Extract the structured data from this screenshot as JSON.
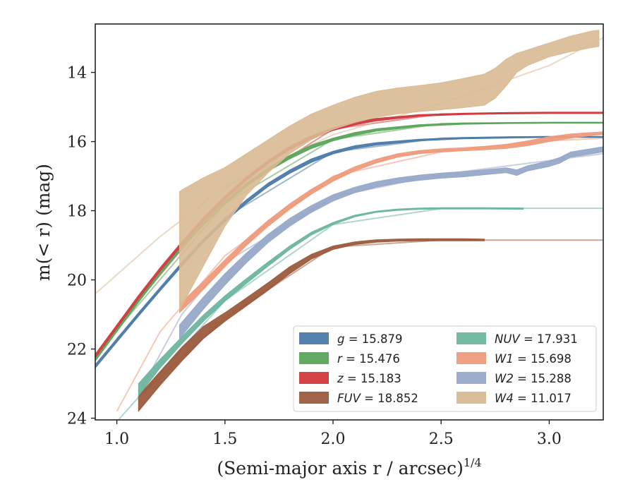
{
  "chart_data": {
    "type": "line",
    "title": "",
    "xlabel": "(Semi-major axis r / arcsec)",
    "xlabel_exponent": "1/4",
    "ylabel": "m(< r) (mag)",
    "xlim": [
      0.9,
      3.25
    ],
    "ylim": [
      24.05,
      12.6
    ],
    "y_inverted": true,
    "grid": false,
    "legend_position": "lower-right",
    "xticks": [
      "1.0",
      "1.5",
      "2.0",
      "2.5",
      "3.0"
    ],
    "yticks": [
      "14",
      "16",
      "18",
      "20",
      "22",
      "24"
    ],
    "series": [
      {
        "name": "g = 15.879",
        "band": "g",
        "value": "15.879",
        "color": "#4C7BA8",
        "band_x": [
          0.9,
          1.0,
          1.1,
          1.2,
          1.3,
          1.4,
          1.5,
          1.6,
          1.7,
          1.8,
          1.9,
          2.0,
          2.1,
          2.2,
          2.4,
          2.6,
          2.8,
          3.0,
          3.25
        ],
        "band_lo": [
          22.55,
          21.8,
          21.05,
          20.32,
          19.6,
          18.92,
          18.32,
          17.78,
          17.3,
          16.92,
          16.6,
          16.36,
          16.2,
          16.1,
          15.98,
          15.92,
          15.9,
          15.88,
          15.88
        ],
        "band_hi": [
          22.45,
          21.7,
          20.95,
          20.22,
          19.5,
          18.82,
          18.22,
          17.68,
          17.2,
          16.82,
          16.5,
          16.28,
          16.12,
          16.03,
          15.93,
          15.88,
          15.86,
          15.85,
          15.85
        ],
        "fit_x": [
          1.0,
          1.5,
          2.0,
          2.5,
          3.0
        ],
        "fit_y": [
          21.7,
          18.2,
          16.3,
          15.9,
          15.86
        ]
      },
      {
        "name": "r = 15.476",
        "band": "r",
        "value": "15.476",
        "color": "#5AA558",
        "band_x": [
          0.9,
          1.0,
          1.1,
          1.2,
          1.3,
          1.4,
          1.5,
          1.6,
          1.7,
          1.8,
          1.9,
          2.0,
          2.1,
          2.2,
          2.4,
          2.6,
          2.8,
          3.0,
          3.25
        ],
        "band_lo": [
          22.35,
          21.5,
          20.65,
          19.85,
          19.1,
          18.42,
          17.82,
          17.3,
          16.86,
          16.5,
          16.2,
          15.98,
          15.82,
          15.7,
          15.56,
          15.5,
          15.48,
          15.47,
          15.47
        ],
        "band_hi": [
          22.25,
          21.4,
          20.55,
          19.75,
          19.0,
          18.32,
          17.72,
          17.2,
          16.76,
          16.4,
          16.1,
          15.9,
          15.74,
          15.63,
          15.51,
          15.46,
          15.45,
          15.44,
          15.44
        ],
        "fit_x": [
          1.0,
          1.5,
          2.0,
          2.5,
          3.0
        ],
        "fit_y": [
          21.45,
          17.8,
          15.94,
          15.48,
          15.46
        ]
      },
      {
        "name": "z = 15.183",
        "band": "z",
        "value": "15.183",
        "color": "#D0393E",
        "band_x": [
          0.9,
          1.0,
          1.1,
          1.2,
          1.3,
          1.4,
          1.5,
          1.6,
          1.7,
          1.8,
          1.9,
          2.0,
          2.1,
          2.2,
          2.4,
          2.6,
          2.8,
          3.0,
          3.25
        ],
        "band_lo": [
          22.25,
          21.4,
          20.55,
          19.75,
          19.0,
          18.3,
          17.68,
          17.12,
          16.64,
          16.24,
          15.92,
          15.68,
          15.52,
          15.4,
          15.27,
          15.22,
          15.2,
          15.19,
          15.19
        ],
        "band_hi": [
          22.15,
          21.3,
          20.45,
          19.65,
          18.9,
          18.2,
          17.58,
          17.02,
          16.54,
          16.14,
          15.83,
          15.6,
          15.44,
          15.33,
          15.22,
          15.18,
          15.16,
          15.15,
          15.15
        ],
        "fit_x": [
          1.0,
          1.5,
          2.0,
          2.5,
          3.0
        ],
        "fit_y": [
          21.35,
          17.63,
          15.64,
          15.2,
          15.18
        ]
      },
      {
        "name": "FUV = 18.852",
        "band": "FUV",
        "value": "18.852",
        "color": "#9B5B3E",
        "band_x": [
          1.1,
          1.2,
          1.3,
          1.4,
          1.5,
          1.6,
          1.7,
          1.8,
          1.9,
          2.0,
          2.1,
          2.2,
          2.3,
          2.4,
          2.5,
          2.6,
          2.7
        ],
        "band_lo": [
          23.8,
          23.05,
          22.35,
          21.7,
          21.2,
          20.75,
          20.3,
          19.82,
          19.4,
          19.12,
          18.98,
          18.91,
          18.88,
          18.87,
          18.87,
          18.87,
          18.87
        ],
        "band_hi": [
          23.35,
          22.65,
          21.95,
          21.35,
          20.95,
          20.52,
          20.08,
          19.62,
          19.26,
          19.02,
          18.9,
          18.84,
          18.82,
          18.81,
          18.81,
          18.81,
          18.82
        ],
        "fit_x": [
          1.1,
          1.5,
          2.0,
          2.5,
          3.0,
          3.25
        ],
        "fit_y": [
          23.4,
          21.1,
          19.05,
          18.85,
          18.85,
          18.85
        ]
      },
      {
        "name": "NUV = 17.931",
        "band": "NUV",
        "value": "17.931",
        "color": "#6DB59E",
        "band_x": [
          1.1,
          1.2,
          1.3,
          1.4,
          1.5,
          1.6,
          1.7,
          1.8,
          1.9,
          2.0,
          2.1,
          2.2,
          2.3,
          2.4,
          2.5,
          2.6,
          2.7,
          2.88
        ],
        "band_lo": [
          23.35,
          22.55,
          21.85,
          21.2,
          20.62,
          20.1,
          19.6,
          19.12,
          18.7,
          18.4,
          18.18,
          18.05,
          17.99,
          17.96,
          17.95,
          17.95,
          17.95,
          17.96
        ],
        "band_hi": [
          23.0,
          22.3,
          21.65,
          21.02,
          20.46,
          19.96,
          19.48,
          19.02,
          18.62,
          18.34,
          18.13,
          18.01,
          17.95,
          17.92,
          17.91,
          17.91,
          17.91,
          17.92
        ],
        "fit_x": [
          1.0,
          1.5,
          2.0,
          2.5,
          3.0,
          3.25
        ],
        "fit_y": [
          24.1,
          20.6,
          18.4,
          17.94,
          17.93,
          17.93
        ]
      },
      {
        "name": "W1 = 15.698",
        "band": "W1",
        "value": "15.698",
        "color": "#EE9B7B",
        "band_x": [
          1.29,
          1.4,
          1.5,
          1.6,
          1.7,
          1.8,
          1.9,
          2.0,
          2.1,
          2.2,
          2.3,
          2.4,
          2.5,
          2.6,
          2.7,
          2.8,
          2.9,
          3.0,
          3.1,
          3.2,
          3.25
        ],
        "band_lo": [
          20.95,
          20.28,
          19.62,
          19.0,
          18.45,
          17.96,
          17.52,
          17.15,
          16.85,
          16.62,
          16.45,
          16.35,
          16.3,
          16.27,
          16.24,
          16.2,
          16.12,
          16.0,
          15.9,
          15.82,
          15.8
        ],
        "band_hi": [
          20.7,
          20.05,
          19.42,
          18.82,
          18.28,
          17.8,
          17.38,
          17.02,
          16.73,
          16.51,
          16.35,
          16.26,
          16.21,
          16.18,
          16.14,
          16.08,
          15.98,
          15.86,
          15.78,
          15.74,
          15.72
        ],
        "fit_x": [
          1.0,
          1.2,
          1.5,
          2.0,
          2.5,
          3.0,
          3.25
        ],
        "fit_y": [
          23.8,
          21.5,
          19.3,
          17.0,
          16.3,
          15.98,
          15.9
        ]
      },
      {
        "name": "W2 = 15.288",
        "band": "W2",
        "value": "15.288",
        "color": "#97A8C8",
        "band_x": [
          1.29,
          1.4,
          1.5,
          1.6,
          1.7,
          1.8,
          1.9,
          2.0,
          2.1,
          2.2,
          2.3,
          2.4,
          2.5,
          2.6,
          2.7,
          2.8,
          2.85,
          2.9,
          3.0,
          3.05,
          3.1,
          3.2,
          3.25
        ],
        "band_lo": [
          21.7,
          20.85,
          20.15,
          19.5,
          18.92,
          18.45,
          18.05,
          17.72,
          17.48,
          17.32,
          17.2,
          17.12,
          17.06,
          17.02,
          16.96,
          16.9,
          16.98,
          16.85,
          16.72,
          16.62,
          16.45,
          16.35,
          16.3
        ],
        "band_hi": [
          21.3,
          20.5,
          19.82,
          19.22,
          18.68,
          18.22,
          17.85,
          17.54,
          17.32,
          17.16,
          17.05,
          16.97,
          16.91,
          16.87,
          16.82,
          16.76,
          16.82,
          16.7,
          16.56,
          16.46,
          16.3,
          16.2,
          16.15
        ],
        "fit_x": [
          1.1,
          1.3,
          1.5,
          2.0,
          2.5,
          3.0,
          3.25
        ],
        "fit_y": [
          23.3,
          21.0,
          19.5,
          17.6,
          16.95,
          16.55,
          16.35
        ]
      },
      {
        "name": "W4 = 11.017",
        "band": "W4",
        "value": "11.017",
        "color": "#D9BA94",
        "band_x": [
          1.29,
          1.3,
          1.4,
          1.5,
          1.6,
          1.7,
          1.8,
          1.9,
          2.0,
          2.1,
          2.2,
          2.3,
          2.4,
          2.5,
          2.6,
          2.7,
          2.75,
          2.8,
          2.85,
          2.9,
          3.0,
          3.1,
          3.2,
          3.23
        ],
        "band_lo": [
          20.9,
          20.75,
          19.6,
          18.45,
          17.55,
          16.9,
          16.35,
          15.95,
          15.65,
          15.45,
          15.3,
          15.2,
          15.13,
          15.08,
          15.02,
          14.95,
          14.75,
          14.4,
          14.0,
          13.8,
          13.55,
          13.4,
          13.28,
          13.25
        ],
        "band_hi": [
          17.45,
          17.4,
          17.05,
          16.75,
          16.35,
          15.95,
          15.55,
          15.2,
          14.95,
          14.72,
          14.55,
          14.45,
          14.38,
          14.3,
          14.18,
          14.05,
          13.88,
          13.62,
          13.45,
          13.35,
          13.15,
          12.95,
          12.8,
          12.78
        ],
        "fit_x": [
          0.9,
          1.2,
          1.5,
          2.0,
          2.5,
          3.0,
          3.25
        ],
        "fit_y": [
          20.4,
          18.75,
          17.3,
          15.8,
          14.9,
          13.8,
          13.0
        ]
      }
    ]
  }
}
